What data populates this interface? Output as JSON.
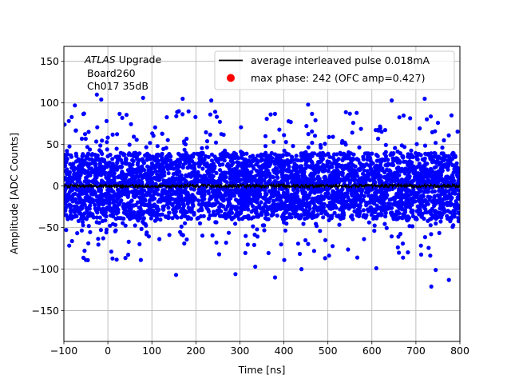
{
  "chart_data": {
    "type": "scatter",
    "title": "",
    "xlabel": "Time [ns]",
    "ylabel": "Amplitude [ADC Counts]",
    "xlim": [
      -100,
      800
    ],
    "ylim": [
      -187,
      168
    ],
    "xticks": [
      -100,
      0,
      100,
      200,
      300,
      400,
      500,
      600,
      700,
      800
    ],
    "yticks": [
      -150,
      -100,
      -50,
      0,
      50,
      100,
      150
    ],
    "grid": true,
    "legend_position": "top-right",
    "annotation": {
      "italic": "ATLAS",
      "rest": " Upgrade",
      "line2": "Board260",
      "line3": "Ch017 35dB"
    },
    "series": [
      {
        "name": "average interleaved pulse 0.018mA",
        "kind": "line",
        "color": "#000000",
        "x_range": [
          -100,
          800
        ],
        "y_level": 0,
        "noise_amplitude": 2
      },
      {
        "name": "max phase: 242 (OFC amp=0.427)",
        "kind": "scatter",
        "color": "#0000ff",
        "legend_color": "#ff0000",
        "x_range": [
          -100,
          800
        ],
        "core_range": [
          -40,
          40
        ],
        "extreme_range": [
          -121,
          110
        ],
        "sample_points": [
          {
            "x": -75,
            "y": 97
          },
          {
            "x": -25,
            "y": 110
          },
          {
            "x": -15,
            "y": 104
          },
          {
            "x": 80,
            "y": 106
          },
          {
            "x": 170,
            "y": 105
          },
          {
            "x": 235,
            "y": 103
          },
          {
            "x": 720,
            "y": 105
          },
          {
            "x": 645,
            "y": 103
          },
          {
            "x": 455,
            "y": 98
          },
          {
            "x": -50,
            "y": -89
          },
          {
            "x": 155,
            "y": -107
          },
          {
            "x": 290,
            "y": -106
          },
          {
            "x": 380,
            "y": -110
          },
          {
            "x": 735,
            "y": -121
          },
          {
            "x": 775,
            "y": -113
          },
          {
            "x": 745,
            "y": -101
          },
          {
            "x": 335,
            "y": -97
          },
          {
            "x": 75,
            "y": -89
          },
          {
            "x": 440,
            "y": -100
          },
          {
            "x": 610,
            "y": -99
          }
        ]
      }
    ]
  }
}
